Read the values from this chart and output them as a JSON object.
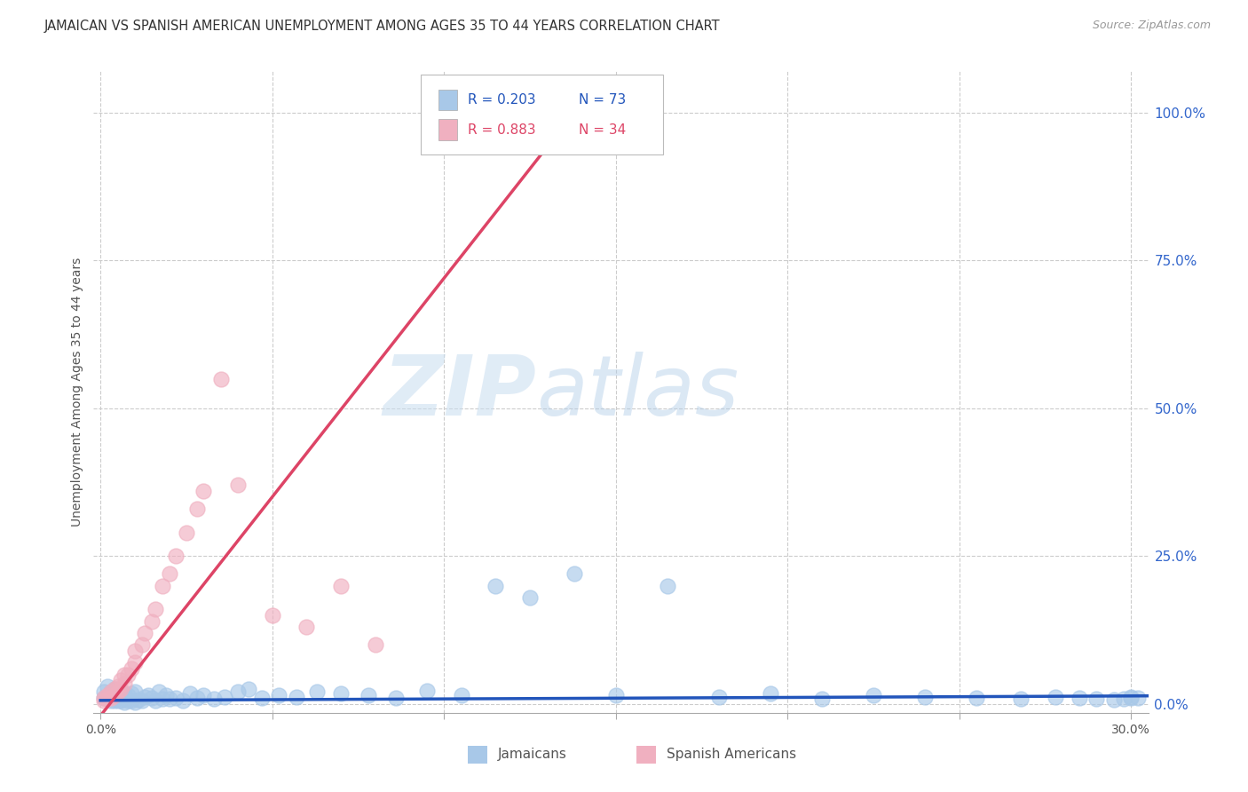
{
  "title": "JAMAICAN VS SPANISH AMERICAN UNEMPLOYMENT AMONG AGES 35 TO 44 YEARS CORRELATION CHART",
  "source": "Source: ZipAtlas.com",
  "ylabel": "Unemployment Among Ages 35 to 44 years",
  "x_tick_labels": [
    "0.0%",
    "",
    "",
    "",
    "",
    "",
    "30.0%"
  ],
  "x_tick_values": [
    0.0,
    0.05,
    0.1,
    0.15,
    0.2,
    0.25,
    0.3
  ],
  "y_tick_labels_right": [
    "0.0%",
    "25.0%",
    "50.0%",
    "75.0%",
    "100.0%"
  ],
  "y_tick_values": [
    0.0,
    0.25,
    0.5,
    0.75,
    1.0
  ],
  "xlim": [
    -0.002,
    0.305
  ],
  "ylim": [
    -0.015,
    1.07
  ],
  "jamaican_color": "#a8c8e8",
  "spanish_color": "#f0b0c0",
  "jamaican_line_color": "#2255bb",
  "spanish_line_color": "#dd4466",
  "watermark_zip": "ZIP",
  "watermark_atlas": "atlas",
  "background_color": "#ffffff",
  "grid_color": "#cccccc",
  "legend_R1": "R = 0.203",
  "legend_N1": "N = 73",
  "legend_R2": "R = 0.883",
  "legend_N2": "N = 34",
  "bottom_legend_label1": "Jamaicans",
  "bottom_legend_label2": "Spanish Americans",
  "jamaicans_x": [
    0.001,
    0.001,
    0.002,
    0.002,
    0.003,
    0.003,
    0.003,
    0.004,
    0.004,
    0.004,
    0.005,
    0.005,
    0.005,
    0.006,
    0.006,
    0.006,
    0.007,
    0.007,
    0.007,
    0.008,
    0.008,
    0.009,
    0.009,
    0.01,
    0.01,
    0.011,
    0.012,
    0.013,
    0.014,
    0.015,
    0.016,
    0.017,
    0.018,
    0.019,
    0.02,
    0.022,
    0.024,
    0.026,
    0.028,
    0.03,
    0.033,
    0.036,
    0.04,
    0.043,
    0.047,
    0.052,
    0.057,
    0.063,
    0.07,
    0.078,
    0.086,
    0.095,
    0.105,
    0.115,
    0.125,
    0.138,
    0.15,
    0.165,
    0.18,
    0.195,
    0.21,
    0.225,
    0.24,
    0.255,
    0.268,
    0.278,
    0.285,
    0.29,
    0.295,
    0.298,
    0.3,
    0.3,
    0.302
  ],
  "jamaicans_y": [
    0.01,
    0.02,
    0.01,
    0.03,
    0.005,
    0.01,
    0.02,
    0.005,
    0.015,
    0.025,
    0.005,
    0.01,
    0.02,
    0.005,
    0.012,
    0.02,
    0.003,
    0.01,
    0.018,
    0.005,
    0.015,
    0.005,
    0.018,
    0.003,
    0.02,
    0.007,
    0.005,
    0.012,
    0.015,
    0.01,
    0.005,
    0.02,
    0.008,
    0.015,
    0.008,
    0.01,
    0.005,
    0.018,
    0.01,
    0.015,
    0.008,
    0.012,
    0.02,
    0.025,
    0.01,
    0.015,
    0.012,
    0.02,
    0.018,
    0.015,
    0.01,
    0.022,
    0.015,
    0.2,
    0.18,
    0.22,
    0.015,
    0.2,
    0.012,
    0.018,
    0.008,
    0.015,
    0.012,
    0.01,
    0.008,
    0.012,
    0.01,
    0.008,
    0.007,
    0.008,
    0.01,
    0.012,
    0.01
  ],
  "spanish_x": [
    0.001,
    0.001,
    0.002,
    0.002,
    0.003,
    0.003,
    0.004,
    0.004,
    0.005,
    0.005,
    0.006,
    0.006,
    0.007,
    0.007,
    0.008,
    0.009,
    0.01,
    0.01,
    0.012,
    0.013,
    0.015,
    0.016,
    0.018,
    0.02,
    0.022,
    0.025,
    0.028,
    0.03,
    0.035,
    0.04,
    0.05,
    0.06,
    0.07,
    0.08
  ],
  "spanish_y": [
    0.005,
    0.01,
    0.008,
    0.015,
    0.01,
    0.02,
    0.015,
    0.025,
    0.02,
    0.03,
    0.025,
    0.04,
    0.035,
    0.05,
    0.05,
    0.06,
    0.07,
    0.09,
    0.1,
    0.12,
    0.14,
    0.16,
    0.2,
    0.22,
    0.25,
    0.29,
    0.33,
    0.36,
    0.55,
    0.37,
    0.15,
    0.13,
    0.2,
    0.1
  ]
}
